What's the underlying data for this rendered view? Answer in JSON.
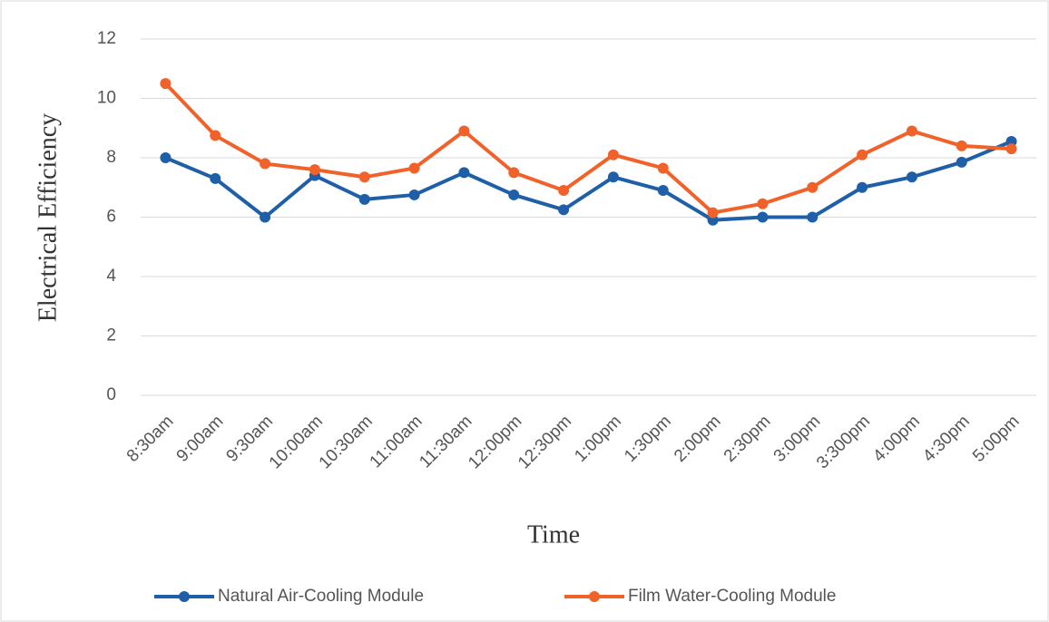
{
  "chart_data": {
    "type": "line",
    "xlabel": "Time",
    "ylabel": "Electrical  Efficiency",
    "categories": [
      "8:30am",
      "9:00am",
      "9:30am",
      "10:00am",
      "10:30am",
      "11:00am",
      "11:30am",
      "12:00pm",
      "12:30pm",
      "1:00pm",
      "1:30pm",
      "2:00pm",
      "2:30pm",
      "3:00pm",
      "3:300pm",
      "4:00pm",
      "4:30pm",
      "5:00pm"
    ],
    "series": [
      {
        "name": "Natural Air-Cooling Module",
        "color": "#1f5fa8",
        "values": [
          8.0,
          7.3,
          6.0,
          7.4,
          6.6,
          6.75,
          7.5,
          6.75,
          6.25,
          7.35,
          6.9,
          5.9,
          6.0,
          6.0,
          7.0,
          7.35,
          7.85,
          8.55
        ]
      },
      {
        "name": "Film Water-Cooling Module",
        "color": "#f0622a",
        "values": [
          10.5,
          8.75,
          7.8,
          7.6,
          7.35,
          7.65,
          8.9,
          7.5,
          6.9,
          8.1,
          7.65,
          6.15,
          6.45,
          7.0,
          8.1,
          8.9,
          8.4,
          8.3
        ]
      }
    ],
    "ylim": [
      0,
      12
    ],
    "yticks": [
      0,
      2,
      4,
      6,
      8,
      10,
      12
    ],
    "grid": true,
    "legend": "bottom"
  }
}
